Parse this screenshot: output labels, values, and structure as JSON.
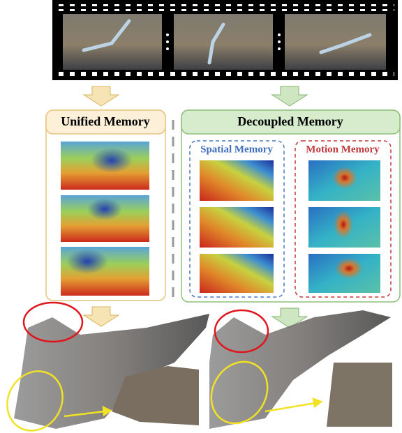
{
  "labels": {
    "unified": "Unified Memory",
    "decoupled": "Decoupled Memory",
    "spatial": "Spatial Memory",
    "motion": "Motion Memory"
  }
}
